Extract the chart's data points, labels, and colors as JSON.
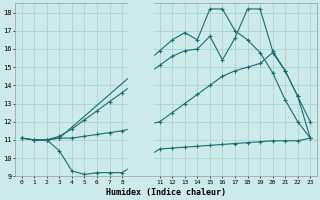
{
  "background_color": "#cceaea",
  "grid_color": "#aacccc",
  "line_color": "#1a6e6e",
  "xlabel": "Humidex (Indice chaleur)",
  "ylim": [
    9,
    18.5
  ],
  "yticks": [
    9,
    10,
    11,
    12,
    13,
    14,
    15,
    16,
    17,
    18
  ],
  "xlim": [
    -0.5,
    23.5
  ],
  "xtick_positions": [
    0,
    1,
    2,
    3,
    4,
    5,
    6,
    7,
    8,
    11,
    12,
    13,
    14,
    15,
    16,
    17,
    18,
    19,
    20,
    21,
    22,
    23
  ],
  "xtick_labels": [
    "0",
    "1",
    "2",
    "3",
    "4",
    "5",
    "6",
    "7",
    "8",
    "11",
    "12",
    "13",
    "14",
    "15",
    "16",
    "17",
    "18",
    "19",
    "20",
    "21",
    "22",
    "23"
  ],
  "line1_x": [
    0,
    1,
    2,
    3,
    4,
    5,
    6,
    7,
    8,
    11,
    12,
    13,
    14,
    15,
    16,
    17,
    18,
    19,
    20,
    21,
    22,
    23
  ],
  "line1_y": [
    11.1,
    11.0,
    11.0,
    11.1,
    11.1,
    11.2,
    11.3,
    11.4,
    11.5,
    12.0,
    12.5,
    13.0,
    13.5,
    14.0,
    14.5,
    14.8,
    15.0,
    15.2,
    15.8,
    14.8,
    13.4,
    11.1
  ],
  "line2_x": [
    0,
    1,
    2,
    3,
    4,
    5,
    6,
    7,
    8,
    11,
    12,
    13,
    14,
    15,
    16,
    17,
    18,
    19,
    20,
    21,
    22,
    23
  ],
  "line2_y": [
    11.1,
    11.0,
    11.0,
    10.4,
    9.3,
    9.1,
    9.2,
    9.2,
    9.2,
    10.5,
    10.55,
    10.6,
    10.65,
    10.7,
    10.75,
    10.8,
    10.85,
    10.9,
    10.95,
    10.95,
    10.95,
    11.1
  ],
  "line3_x": [
    0,
    1,
    2,
    3,
    4,
    5,
    6,
    7,
    8,
    11,
    12,
    13,
    14,
    15,
    16,
    17,
    18,
    19,
    20,
    21,
    22,
    23
  ],
  "line3_y": [
    11.1,
    11.0,
    11.0,
    11.2,
    11.6,
    12.1,
    12.6,
    13.1,
    13.6,
    15.1,
    15.6,
    15.9,
    16.0,
    16.7,
    15.4,
    16.6,
    18.2,
    18.2,
    15.9,
    14.8,
    13.4,
    12.0
  ],
  "line4_x": [
    1,
    2,
    3,
    11,
    12,
    13,
    14,
    15,
    16,
    17,
    18,
    19,
    20,
    21,
    22,
    23
  ],
  "line4_y": [
    11.0,
    11.0,
    11.1,
    15.9,
    16.5,
    16.9,
    16.5,
    18.2,
    18.2,
    17.0,
    16.5,
    15.8,
    14.7,
    13.2,
    12.0,
    11.1
  ]
}
